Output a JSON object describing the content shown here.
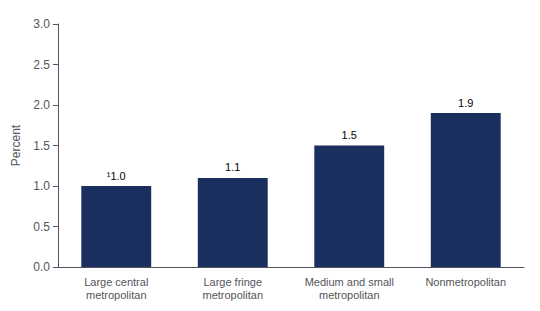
{
  "chart_data": {
    "type": "bar",
    "categories": [
      "Large central\nmetropolitan",
      "Large fringe\nmetropolitan",
      "Medium and small\nmetropolitan",
      "Nonmetropolitan"
    ],
    "values": [
      1.0,
      1.1,
      1.5,
      1.9
    ],
    "value_labels": [
      "¹1.0",
      "1.1",
      "1.5",
      "1.9"
    ],
    "data_labels": true,
    "color": "#1b2f5e",
    "ylabel": "Percent",
    "ylim": [
      0,
      3.0
    ],
    "yticks": [
      {
        "value": 0.0,
        "label": "0.0"
      },
      0.5,
      {
        "value": 1.0,
        "label": "1.0"
      },
      1.5,
      {
        "value": 2.0,
        "label": "2.0"
      },
      2.5,
      {
        "value": 3.0,
        "label": "3.0"
      }
    ],
    "grid": false
  }
}
